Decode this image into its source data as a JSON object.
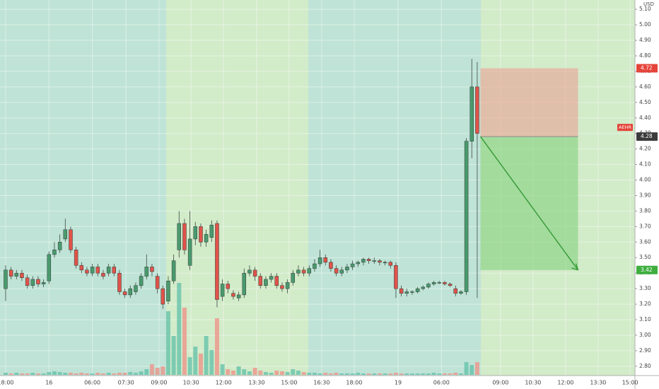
{
  "chart_data": {
    "type": "candlestick",
    "symbol": "AEHR",
    "currency": "USD",
    "up_color": "#4a9a6e",
    "down_color": "#e0534a",
    "up_volume_color": "#5fc0a8",
    "down_volume_color": "#ef8f86",
    "open": [
      3.3,
      3.42,
      3.38,
      3.4,
      3.37,
      3.32,
      3.36,
      3.33,
      3.35,
      3.52,
      3.55,
      3.62,
      3.68,
      3.55,
      3.45,
      3.42,
      3.4,
      3.44,
      3.4,
      3.4,
      3.44,
      3.4,
      3.28,
      3.26,
      3.28,
      3.32,
      3.38,
      3.44,
      3.38,
      3.3,
      3.22,
      3.35,
      3.55,
      3.72,
      3.45,
      3.62,
      3.7,
      3.6,
      3.63,
      3.72,
      3.25,
      3.33,
      3.27,
      3.24,
      3.26,
      3.4,
      3.42,
      3.38,
      3.32,
      3.36,
      3.38,
      3.32,
      3.3,
      3.34,
      3.4,
      3.42,
      3.4,
      3.43,
      3.46,
      3.5,
      3.47,
      3.43,
      3.4,
      3.42,
      3.44,
      3.46,
      3.47,
      3.49,
      3.48,
      3.48,
      3.47,
      3.47,
      3.45,
      3.3,
      3.27,
      3.28,
      3.28,
      3.3,
      3.31,
      3.33,
      3.34,
      3.34,
      3.33,
      3.3,
      3.27,
      3.28,
      4.25,
      4.6
    ],
    "high": [
      3.45,
      3.44,
      3.42,
      3.42,
      3.39,
      3.38,
      3.38,
      3.36,
      3.54,
      3.6,
      3.65,
      3.75,
      3.7,
      3.57,
      3.47,
      3.44,
      3.46,
      3.46,
      3.42,
      3.46,
      3.46,
      3.42,
      3.3,
      3.32,
      3.34,
      3.4,
      3.52,
      3.46,
      3.4,
      3.32,
      3.38,
      3.52,
      3.8,
      3.75,
      3.8,
      3.73,
      3.72,
      3.68,
      3.74,
      3.74,
      3.36,
      3.35,
      3.29,
      3.28,
      3.43,
      3.45,
      3.44,
      3.4,
      3.38,
      3.4,
      3.4,
      3.34,
      3.36,
      3.42,
      3.45,
      3.44,
      3.45,
      3.49,
      3.55,
      3.52,
      3.49,
      3.45,
      3.44,
      3.46,
      3.48,
      3.48,
      3.5,
      3.5,
      3.5,
      3.49,
      3.48,
      3.48,
      3.47,
      3.32,
      3.3,
      3.29,
      3.31,
      3.32,
      3.34,
      3.35,
      3.35,
      3.35,
      3.34,
      3.32,
      3.29,
      4.27,
      4.78,
      4.76
    ],
    "low": [
      3.22,
      3.36,
      3.36,
      3.35,
      3.3,
      3.3,
      3.31,
      3.31,
      3.33,
      3.5,
      3.53,
      3.6,
      3.53,
      3.43,
      3.4,
      3.38,
      3.38,
      3.38,
      3.36,
      3.38,
      3.38,
      3.26,
      3.24,
      3.24,
      3.26,
      3.3,
      3.36,
      3.38,
      3.27,
      3.17,
      3.2,
      3.33,
      3.5,
      3.52,
      3.42,
      3.58,
      3.57,
      3.57,
      3.6,
      3.18,
      3.22,
      3.27,
      3.23,
      3.22,
      3.24,
      3.38,
      3.35,
      3.3,
      3.3,
      3.34,
      3.3,
      3.28,
      3.27,
      3.32,
      3.38,
      3.38,
      3.38,
      3.41,
      3.44,
      3.45,
      3.41,
      3.38,
      3.38,
      3.4,
      3.42,
      3.44,
      3.45,
      3.46,
      3.46,
      3.45,
      3.45,
      3.43,
      3.24,
      3.25,
      3.25,
      3.26,
      3.27,
      3.29,
      3.3,
      3.32,
      3.33,
      3.32,
      3.31,
      3.25,
      3.26,
      3.26,
      4.14,
      3.24
    ],
    "close": [
      3.42,
      3.38,
      3.4,
      3.37,
      3.32,
      3.36,
      3.33,
      3.34,
      3.52,
      3.55,
      3.6,
      3.68,
      3.55,
      3.45,
      3.42,
      3.4,
      3.44,
      3.4,
      3.38,
      3.44,
      3.4,
      3.28,
      3.26,
      3.3,
      3.32,
      3.38,
      3.44,
      3.41,
      3.3,
      3.2,
      3.35,
      3.48,
      3.72,
      3.55,
      3.62,
      3.7,
      3.6,
      3.65,
      3.71,
      3.23,
      3.33,
      3.3,
      3.25,
      3.26,
      3.4,
      3.42,
      3.38,
      3.32,
      3.36,
      3.38,
      3.32,
      3.3,
      3.34,
      3.4,
      3.42,
      3.4,
      3.43,
      3.46,
      3.5,
      3.47,
      3.43,
      3.4,
      3.42,
      3.44,
      3.46,
      3.47,
      3.49,
      3.48,
      3.48,
      3.47,
      3.47,
      3.45,
      3.3,
      3.27,
      3.28,
      3.28,
      3.3,
      3.31,
      3.33,
      3.34,
      3.34,
      3.33,
      3.32,
      3.27,
      3.28,
      4.25,
      4.6,
      4.3
    ],
    "volume": [
      3,
      2,
      3,
      2,
      2,
      3,
      2,
      2,
      4,
      5,
      4,
      3,
      3,
      2,
      3,
      2,
      2,
      3,
      2,
      3,
      2,
      3,
      3,
      4,
      3,
      5,
      8,
      15,
      10,
      12,
      90,
      55,
      130,
      95,
      25,
      40,
      30,
      55,
      35,
      80,
      15,
      8,
      6,
      12,
      8,
      5,
      10,
      6,
      4,
      3,
      6,
      5,
      4,
      8,
      6,
      4,
      3,
      3,
      2,
      3,
      2,
      3,
      2,
      2,
      2,
      3,
      2,
      2,
      2,
      2,
      2,
      2,
      3,
      2,
      2,
      2,
      2,
      2,
      2,
      3,
      2,
      2,
      2,
      3,
      2,
      18,
      14,
      18
    ],
    "volume_lim": [
      0,
      140
    ],
    "xlim": [
      -1.04,
      116.1
    ],
    "xticks": [
      {
        "value": 0,
        "label": "18:00"
      },
      {
        "value": 8,
        "label": "16"
      },
      {
        "value": 16,
        "label": "06:00"
      },
      {
        "value": 22.2,
        "label": "07:30"
      },
      {
        "value": 28.3,
        "label": "09:00"
      },
      {
        "value": 34.2,
        "label": "10:30"
      },
      {
        "value": 40.2,
        "label": "12:00"
      },
      {
        "value": 46.3,
        "label": "13:30"
      },
      {
        "value": 52.3,
        "label": "15:00"
      },
      {
        "value": 58.3,
        "label": "16:30"
      },
      {
        "value": 64.3,
        "label": "18:00"
      },
      {
        "value": 72.4,
        "label": "19"
      },
      {
        "value": 80.4,
        "label": "06:00"
      },
      {
        "value": 91.3,
        "label": "09:00"
      },
      {
        "value": 97.3,
        "label": "10:30"
      },
      {
        "value": 103.3,
        "label": "12:00"
      },
      {
        "value": 109.3,
        "label": "13:30"
      },
      {
        "value": 115.2,
        "label": "15:00"
      }
    ],
    "ylim": [
      2.74,
      5.16
    ],
    "yticks": [
      {
        "value": 2.8,
        "label": "2.80"
      },
      {
        "value": 2.9,
        "label": "2.90"
      },
      {
        "value": 3.0,
        "label": "3.00"
      },
      {
        "value": 3.1,
        "label": "3.10"
      },
      {
        "value": 3.2,
        "label": "3.20"
      },
      {
        "value": 3.3,
        "label": "3.30"
      },
      {
        "value": 3.4,
        "label": "3.40"
      },
      {
        "value": 3.5,
        "label": "3.50"
      },
      {
        "value": 3.6,
        "label": "3.60"
      },
      {
        "value": 3.7,
        "label": "3.70"
      },
      {
        "value": 3.8,
        "label": "3.80"
      },
      {
        "value": 3.9,
        "label": "3.90"
      },
      {
        "value": 4.0,
        "label": "4.00"
      },
      {
        "value": 4.1,
        "label": "4.10"
      },
      {
        "value": 4.2,
        "label": "4.20"
      },
      {
        "value": 4.3,
        "label": "4.30"
      },
      {
        "value": 4.4,
        "label": "4.40"
      },
      {
        "value": 4.5,
        "label": "4.50"
      },
      {
        "value": 4.6,
        "label": "4.60"
      },
      {
        "value": 4.7,
        "label": "4.70"
      },
      {
        "value": 4.8,
        "label": "4.80"
      },
      {
        "value": 4.9,
        "label": "4.90"
      },
      {
        "value": 5.0,
        "label": "5.00"
      },
      {
        "value": 5.1,
        "label": "5.10"
      }
    ],
    "grid": true,
    "position": {
      "entry": 4.28,
      "stop": 4.72,
      "target": 3.42,
      "start": 87.6,
      "end": 105.6
    }
  }
}
